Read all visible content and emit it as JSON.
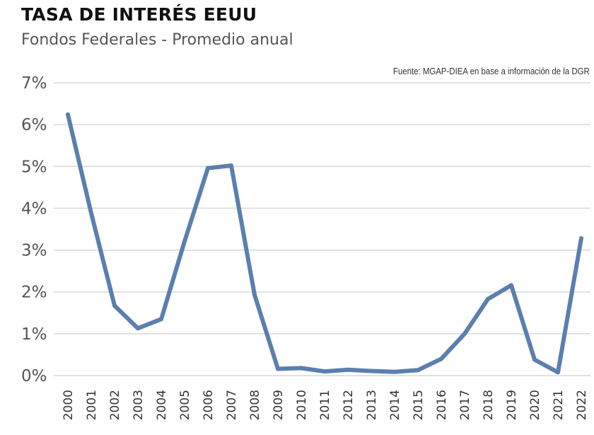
{
  "chart_data": {
    "type": "line",
    "title": "TASA DE INTERÉS EEUU",
    "subtitle": "Fondos Federales -  Promedio anual",
    "source": "Fuente: MGAP-DIEA en base a información de la DGR",
    "x": [
      "2000",
      "2001",
      "2002",
      "2003",
      "2004",
      "2005",
      "2006",
      "2007",
      "2008",
      "2009",
      "2010",
      "2011",
      "2012",
      "2013",
      "2014",
      "2015",
      "2016",
      "2017",
      "2018",
      "2019",
      "2020",
      "2021",
      "2022"
    ],
    "series": [
      {
        "values": [
          6.24,
          3.88,
          1.67,
          1.13,
          1.35,
          3.21,
          4.96,
          5.02,
          1.93,
          0.16,
          0.18,
          0.1,
          0.14,
          0.11,
          0.09,
          0.13,
          0.4,
          1.0,
          1.83,
          2.16,
          0.38,
          0.08,
          3.28
        ],
        "color": "#5b7fae"
      }
    ],
    "yticks": [
      "0%",
      "1%",
      "2%",
      "3%",
      "4%",
      "5%",
      "6%",
      "7%"
    ],
    "ylim": [
      0,
      7
    ],
    "grid": true,
    "legend": "none"
  }
}
